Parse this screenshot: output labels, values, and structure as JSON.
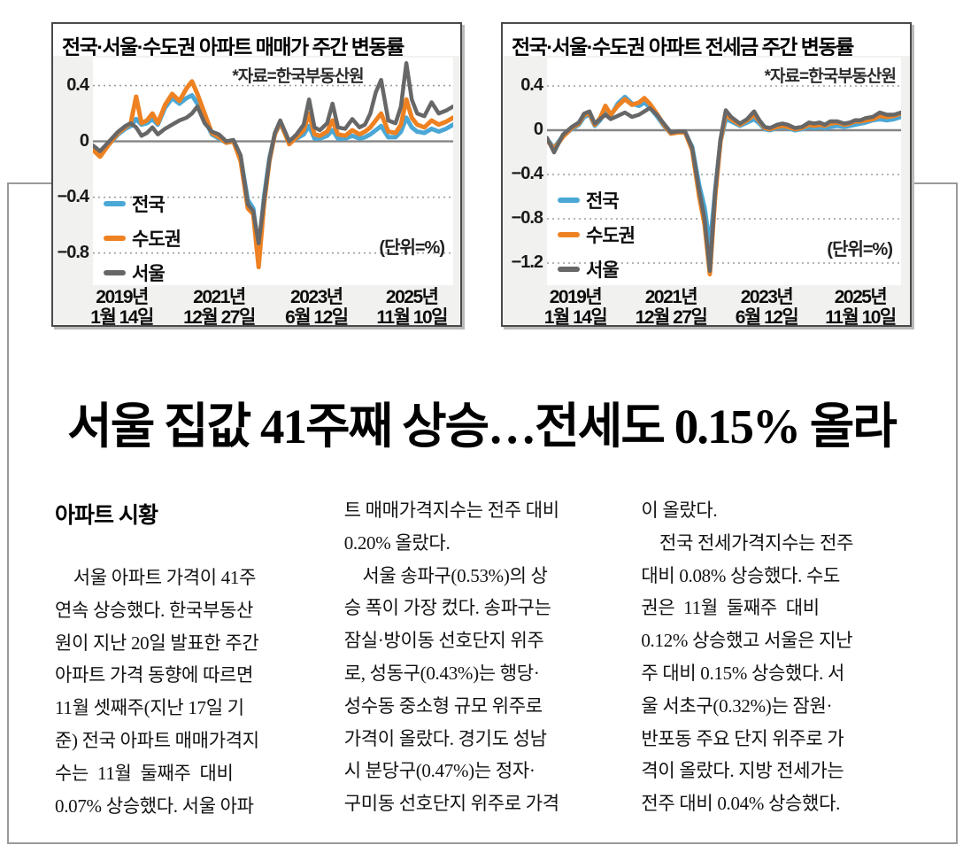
{
  "headline": "서울 집값 41주째 상승…전세도 0.15% 올라",
  "article": {
    "kicker": "아파트 시황",
    "columns": [
      "　서울 아파트 가격이 41주\n연속 상승했다. 한국부동산\n원이 지난 20일 발표한 주간\n아파트 가격 동향에 따르면\n11월 셋째주(지난 17일 기\n준) 전국 아파트 매매가격지\n수는  11월  둘째주  대비\n0.07% 상승했다. 서울 아파",
      "트 매매가격지수는 전주 대비\n0.20% 올랐다.\n　서울 송파구(0.53%)의 상\n승 폭이 가장 컸다. 송파구는\n잠실·방이동 선호단지 위주\n로, 성동구(0.43%)는 행당·\n성수동 중소형 규모 위주로\n가격이 올랐다. 경기도 성남\n시 분당구(0.47%)는 정자·\n구미동 선호단지 위주로 가격",
      "이 올랐다.\n　전국 전세가격지수는 전주\n대비 0.08% 상승했다. 수도\n권은  11월  둘째주  대비\n0.12% 상승했고 서울은 지난\n주 대비 0.15% 상승했다. 서\n울 서초구(0.32%)는 잠원·\n반포동 주요 단지 위주로 가\n격이 올랐다. 지방 전세가는\n전주 대비 0.04% 상승했다."
    ]
  },
  "chart_data": [
    {
      "type": "line",
      "title": "전국·서울·수도권 아파트 매매가 주간 변동률",
      "source": "*자료=한국부동산원",
      "unit": "(단위=%)",
      "ylim": [
        -1.03,
        0.6
      ],
      "grid": true,
      "gridlines": [
        0.4,
        -0.4,
        -0.8
      ],
      "grid_color": "#9b9b9b",
      "zero_color": "#858585",
      "yticks": [
        {
          "value": 0.4,
          "label": "0.4"
        },
        {
          "value": 0,
          "label": "0"
        },
        {
          "value": -0.4,
          "label": "−0.4"
        },
        {
          "value": -0.8,
          "label": "−0.8"
        }
      ],
      "xticklabels": [
        [
          "2019년",
          "1월 14일"
        ],
        [
          "2021년",
          "12월 27일"
        ],
        [
          "2023년",
          "6월 12일"
        ],
        [
          "2025년",
          "11월 10일"
        ]
      ],
      "legend_position": "inside-left",
      "x": [
        0,
        0.02,
        0.045,
        0.07,
        0.09,
        0.105,
        0.12,
        0.135,
        0.15,
        0.165,
        0.18,
        0.2,
        0.22,
        0.24,
        0.26,
        0.275,
        0.29,
        0.31,
        0.33,
        0.35,
        0.37,
        0.39,
        0.41,
        0.43,
        0.445,
        0.46,
        0.475,
        0.49,
        0.505,
        0.52,
        0.545,
        0.565,
        0.585,
        0.6,
        0.615,
        0.63,
        0.65,
        0.665,
        0.68,
        0.7,
        0.72,
        0.74,
        0.755,
        0.77,
        0.785,
        0.8,
        0.82,
        0.84,
        0.855,
        0.87,
        0.885,
        0.9,
        0.92,
        0.94,
        0.96,
        0.98,
        1
      ],
      "series": [
        {
          "name": "전국",
          "color": "#4ba7d6",
          "width": 5,
          "values": [
            -0.05,
            -0.1,
            -0.02,
            0.05,
            0.09,
            0.11,
            0.16,
            0.12,
            0.13,
            0.16,
            0.12,
            0.24,
            0.31,
            0.27,
            0.31,
            0.33,
            0.27,
            0.16,
            0.05,
            0.02,
            -0.01,
            0,
            -0.12,
            -0.42,
            -0.48,
            -0.78,
            -0.4,
            -0.12,
            0.05,
            0.13,
            -0.01,
            0.02,
            0.05,
            0.11,
            0.02,
            0.02,
            0.04,
            0.08,
            0.02,
            0.02,
            0.04,
            0.02,
            0.03,
            0.05,
            0.08,
            0.11,
            0.03,
            0.03,
            0.07,
            0.17,
            0.1,
            0.07,
            0.06,
            0.09,
            0.07,
            0.09,
            0.12
          ]
        },
        {
          "name": "수도권",
          "color": "#ee8121",
          "width": 5,
          "values": [
            -0.06,
            -0.11,
            -0.02,
            0.06,
            0.1,
            0.13,
            0.32,
            0.13,
            0.15,
            0.2,
            0.13,
            0.26,
            0.34,
            0.29,
            0.38,
            0.43,
            0.34,
            0.2,
            0.06,
            0.03,
            -0.01,
            0,
            -0.14,
            -0.48,
            -0.52,
            -0.9,
            -0.45,
            -0.14,
            0.05,
            0.14,
            -0.02,
            0.03,
            0.08,
            0.2,
            0.05,
            0.04,
            0.07,
            0.15,
            0.05,
            0.04,
            0.08,
            0.05,
            0.07,
            0.1,
            0.15,
            0.2,
            0.07,
            0.06,
            0.12,
            0.3,
            0.17,
            0.12,
            0.1,
            0.15,
            0.12,
            0.14,
            0.17
          ]
        },
        {
          "name": "서울",
          "color": "#676767",
          "width": 4.5,
          "values": [
            -0.03,
            -0.07,
            0,
            0.07,
            0.11,
            0.13,
            0.1,
            0.04,
            0.06,
            0.1,
            0.05,
            0.09,
            0.12,
            0.15,
            0.17,
            0.2,
            0.25,
            0.13,
            0.07,
            0.05,
            0,
            0.01,
            -0.1,
            -0.45,
            -0.5,
            -0.73,
            -0.42,
            -0.13,
            0.06,
            0.15,
            0,
            0.05,
            0.12,
            0.3,
            0.1,
            0.08,
            0.13,
            0.27,
            0.1,
            0.09,
            0.16,
            0.1,
            0.12,
            0.2,
            0.35,
            0.44,
            0.15,
            0.13,
            0.25,
            0.56,
            0.3,
            0.2,
            0.18,
            0.28,
            0.2,
            0.22,
            0.25
          ]
        }
      ]
    },
    {
      "type": "line",
      "title": "전국·서울·수도권 아파트 전세금 주간 변동률",
      "source": "*자료=한국부동산원",
      "unit": "(단위=%)",
      "ylim": [
        -1.4,
        0.656
      ],
      "grid": true,
      "gridlines": [
        0.4,
        -0.4,
        -0.8,
        -1.2
      ],
      "grid_color": "#9b9b9b",
      "zero_color": "#858585",
      "yticks": [
        {
          "value": 0.4,
          "label": "0.4"
        },
        {
          "value": 0,
          "label": "0"
        },
        {
          "value": -0.4,
          "label": "−0.4"
        },
        {
          "value": -0.8,
          "label": "−0.8"
        },
        {
          "value": -1.2,
          "label": "−1.2"
        }
      ],
      "xticklabels": [
        [
          "2019년",
          "1월 14일"
        ],
        [
          "2021년",
          "12월 27일"
        ],
        [
          "2023년",
          "6월 12일"
        ],
        [
          "2025년",
          "11월 10일"
        ]
      ],
      "legend_position": "inside-left",
      "x": [
        0,
        0.02,
        0.045,
        0.07,
        0.09,
        0.105,
        0.12,
        0.135,
        0.15,
        0.165,
        0.18,
        0.2,
        0.22,
        0.24,
        0.26,
        0.275,
        0.29,
        0.31,
        0.33,
        0.35,
        0.37,
        0.39,
        0.41,
        0.43,
        0.445,
        0.46,
        0.475,
        0.49,
        0.505,
        0.52,
        0.545,
        0.565,
        0.585,
        0.6,
        0.615,
        0.63,
        0.65,
        0.665,
        0.68,
        0.7,
        0.72,
        0.74,
        0.755,
        0.77,
        0.785,
        0.8,
        0.82,
        0.84,
        0.855,
        0.87,
        0.885,
        0.9,
        0.92,
        0.94,
        0.96,
        0.98,
        1
      ],
      "series": [
        {
          "name": "전국",
          "color": "#4ba7d6",
          "width": 5,
          "values": [
            -0.08,
            -0.16,
            -0.05,
            0.01,
            0.05,
            0.12,
            0.14,
            0.04,
            0.09,
            0.2,
            0.13,
            0.24,
            0.3,
            0.24,
            0.22,
            0.25,
            0.21,
            0.13,
            0.04,
            -0.03,
            -0.02,
            -0.02,
            -0.15,
            -0.5,
            -0.7,
            -1.05,
            -0.55,
            -0.1,
            0.1,
            0.08,
            0.04,
            0.07,
            0.1,
            0.06,
            0.01,
            0,
            0.02,
            0.03,
            0.02,
            0,
            0.01,
            0.03,
            0.02,
            0.03,
            0.02,
            0.03,
            0.04,
            0.03,
            0.04,
            0.05,
            0.06,
            0.07,
            0.09,
            0.1,
            0.09,
            0.1,
            0.12
          ]
        },
        {
          "name": "수도권",
          "color": "#ee8121",
          "width": 5,
          "values": [
            -0.09,
            -0.17,
            -0.06,
            0.02,
            0.06,
            0.14,
            0.15,
            0.05,
            0.11,
            0.22,
            0.14,
            0.22,
            0.28,
            0.23,
            0.25,
            0.29,
            0.24,
            0.15,
            0.05,
            -0.03,
            -0.02,
            -0.02,
            -0.18,
            -0.6,
            -0.85,
            -1.3,
            -0.6,
            -0.1,
            0.15,
            0.1,
            0.05,
            0.09,
            0.14,
            0.08,
            0.02,
            0.01,
            0.03,
            0.04,
            0.03,
            0.01,
            0.02,
            0.05,
            0.04,
            0.05,
            0.04,
            0.06,
            0.07,
            0.05,
            0.06,
            0.08,
            0.08,
            0.09,
            0.1,
            0.13,
            0.12,
            0.13,
            0.15
          ]
        },
        {
          "name": "서울",
          "color": "#676767",
          "width": 4.5,
          "values": [
            -0.07,
            -0.2,
            -0.04,
            0.03,
            0.07,
            0.15,
            0.17,
            0.06,
            0.1,
            0.14,
            0.1,
            0.13,
            0.16,
            0.12,
            0.14,
            0.17,
            0.2,
            0.14,
            0.06,
            -0.02,
            -0.01,
            -0.01,
            -0.16,
            -0.55,
            -0.8,
            -1.27,
            -0.55,
            -0.08,
            0.18,
            0.12,
            0.06,
            0.1,
            0.17,
            0.09,
            0.03,
            0.02,
            0.05,
            0.06,
            0.05,
            0.02,
            0.03,
            0.07,
            0.06,
            0.07,
            0.05,
            0.08,
            0.08,
            0.06,
            0.07,
            0.09,
            0.09,
            0.11,
            0.12,
            0.16,
            0.14,
            0.14,
            0.16
          ]
        }
      ]
    }
  ]
}
